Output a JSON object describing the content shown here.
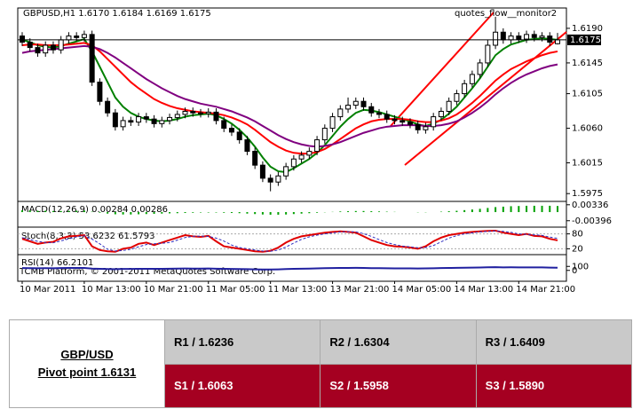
{
  "chart_data": {
    "type": "candlestick",
    "title": "GBPUSD,H1  1.6170 1.6184 1.6169 1.6175",
    "subtitle": "quotes_flow__monitor2",
    "x": [
      "10 Mar 2011",
      null,
      null,
      null,
      null,
      null,
      null,
      null,
      "10 Mar 13:00",
      null,
      null,
      null,
      null,
      null,
      null,
      null,
      "10 Mar 21:00",
      null,
      null,
      null,
      null,
      null,
      null,
      null,
      "11 Mar 05:00",
      null,
      null,
      null,
      null,
      null,
      null,
      null,
      "11 Mar 13:00",
      null,
      null,
      null,
      null,
      null,
      null,
      null,
      "13 Mar 21:00",
      null,
      null,
      null,
      null,
      null,
      null,
      null,
      "14 Mar 05:00",
      null,
      null,
      null,
      null,
      null,
      null,
      null,
      "14 Mar 13:00",
      null,
      null,
      null,
      null,
      null,
      null,
      null,
      "14 Mar 21:00",
      null,
      null,
      null,
      null,
      null
    ],
    "open": [
      1.618,
      1.6172,
      1.6165,
      1.6158,
      1.6168,
      1.6162,
      1.6175,
      1.618,
      1.6178,
      1.6182,
      1.612,
      1.6095,
      1.608,
      1.6062,
      1.607,
      1.6068,
      1.6075,
      1.6072,
      1.6066,
      1.607,
      1.6074,
      1.6078,
      1.6082,
      1.608,
      1.6079,
      1.6081,
      1.607,
      1.606,
      1.6055,
      1.6045,
      1.603,
      1.6012,
      1.5995,
      1.599,
      1.5998,
      1.601,
      1.602,
      1.6025,
      1.603,
      1.6045,
      1.606,
      1.6075,
      1.6085,
      1.609,
      1.6095,
      1.6088,
      1.608,
      1.6078,
      1.6072,
      1.607,
      1.6068,
      1.6065,
      1.6058,
      1.6062,
      1.6075,
      1.6082,
      1.6095,
      1.6105,
      1.6118,
      1.613,
      1.6145,
      1.6168,
      1.6185,
      1.6175,
      1.618,
      1.6176,
      1.6182,
      1.6178,
      1.618,
      1.617
    ],
    "high": [
      1.6185,
      1.6177,
      1.617,
      1.6173,
      1.6173,
      1.618,
      1.6185,
      1.6185,
      1.6187,
      1.6187,
      1.6125,
      1.61,
      1.6085,
      1.6075,
      1.6075,
      1.608,
      1.608,
      1.6077,
      1.6075,
      1.6079,
      1.6083,
      1.6087,
      1.6087,
      1.6085,
      1.6086,
      1.6086,
      1.6075,
      1.6065,
      1.606,
      1.605,
      1.6035,
      1.6017,
      1.6,
      1.6003,
      1.6015,
      1.6025,
      1.603,
      1.6035,
      1.605,
      1.6065,
      1.608,
      1.609,
      1.61,
      1.61,
      1.61,
      1.6093,
      1.6085,
      1.6083,
      1.6077,
      1.6075,
      1.6073,
      1.607,
      1.6067,
      1.608,
      1.6087,
      1.61,
      1.611,
      1.6123,
      1.6135,
      1.615,
      1.6175,
      1.6205,
      1.619,
      1.6185,
      1.6185,
      1.6187,
      1.6187,
      1.6185,
      1.6185,
      1.6184
    ],
    "low": [
      1.6167,
      1.616,
      1.6153,
      1.6153,
      1.6157,
      1.6157,
      1.617,
      1.6173,
      1.6173,
      1.6115,
      1.609,
      1.6075,
      1.6057,
      1.6057,
      1.6063,
      1.6063,
      1.6067,
      1.6061,
      1.6061,
      1.6065,
      1.6069,
      1.6073,
      1.6075,
      1.6074,
      1.6074,
      1.6065,
      1.6055,
      1.605,
      1.604,
      1.6025,
      1.6007,
      1.599,
      1.5978,
      1.5985,
      1.5993,
      1.6005,
      1.6015,
      1.602,
      1.6025,
      1.604,
      1.6055,
      1.607,
      1.608,
      1.6085,
      1.6083,
      1.6075,
      1.6073,
      1.6067,
      1.6065,
      1.6063,
      1.606,
      1.6053,
      1.6053,
      1.6057,
      1.607,
      1.6077,
      1.609,
      1.61,
      1.6113,
      1.6125,
      1.614,
      1.6163,
      1.617,
      1.617,
      1.6171,
      1.6171,
      1.6173,
      1.6173,
      1.6167,
      1.6169
    ],
    "close": [
      1.6172,
      1.6165,
      1.6158,
      1.6168,
      1.6162,
      1.6175,
      1.618,
      1.6178,
      1.6182,
      1.612,
      1.6095,
      1.608,
      1.6062,
      1.607,
      1.6068,
      1.6075,
      1.6072,
      1.6066,
      1.607,
      1.6074,
      1.6078,
      1.6082,
      1.608,
      1.6079,
      1.6081,
      1.607,
      1.606,
      1.6055,
      1.6045,
      1.603,
      1.6012,
      1.5995,
      1.599,
      1.5998,
      1.601,
      1.602,
      1.6025,
      1.603,
      1.6045,
      1.606,
      1.6075,
      1.6085,
      1.609,
      1.6095,
      1.6088,
      1.608,
      1.6078,
      1.6072,
      1.607,
      1.6068,
      1.6065,
      1.6058,
      1.6062,
      1.6075,
      1.6082,
      1.6095,
      1.6105,
      1.6118,
      1.613,
      1.6145,
      1.6168,
      1.6185,
      1.6175,
      1.618,
      1.6176,
      1.6182,
      1.6178,
      1.618,
      1.6172,
      1.6175
    ],
    "series": [
      {
        "color": "#008000",
        "values": [
          1.6175,
          1.6172,
          1.6168,
          1.6166,
          1.6165,
          1.6167,
          1.617,
          1.6173,
          1.6176,
          1.616,
          1.614,
          1.612,
          1.61,
          1.6088,
          1.608,
          1.6075,
          1.6072,
          1.607,
          1.6069,
          1.607,
          1.6072,
          1.6075,
          1.6077,
          1.6078,
          1.6079,
          1.6077,
          1.6072,
          1.6066,
          1.6058,
          1.6048,
          1.6036,
          1.6022,
          1.601,
          1.6004,
          1.6003,
          1.6008,
          1.6014,
          1.602,
          1.6028,
          1.6038,
          1.605,
          1.6062,
          1.6072,
          1.608,
          1.6084,
          1.6083,
          1.6081,
          1.6078,
          1.6075,
          1.6072,
          1.6069,
          1.6065,
          1.6063,
          1.6066,
          1.6071,
          1.6079,
          1.6088,
          1.61,
          1.6112,
          1.6125,
          1.614,
          1.6155,
          1.6163,
          1.6169,
          1.6172,
          1.6175,
          1.6176,
          1.6177,
          1.6176,
          1.6175
        ]
      },
      {
        "color": "#ff0000",
        "values": [
          1.6168,
          1.6169,
          1.6169,
          1.6168,
          1.6168,
          1.6168,
          1.6169,
          1.617,
          1.6171,
          1.6168,
          1.616,
          1.615,
          1.614,
          1.613,
          1.612,
          1.6112,
          1.6105,
          1.6098,
          1.6093,
          1.6089,
          1.6086,
          1.6084,
          1.6082,
          1.6081,
          1.608,
          1.6079,
          1.6077,
          1.6074,
          1.607,
          1.6065,
          1.6058,
          1.605,
          1.6042,
          1.6036,
          1.6031,
          1.6028,
          1.6027,
          1.6027,
          1.6029,
          1.6033,
          1.6039,
          1.6046,
          1.6053,
          1.606,
          1.6065,
          1.6069,
          1.6071,
          1.6072,
          1.6072,
          1.6072,
          1.6071,
          1.6069,
          1.6068,
          1.6068,
          1.607,
          1.6073,
          1.6078,
          1.6085,
          1.6093,
          1.6102,
          1.6112,
          1.6122,
          1.613,
          1.6137,
          1.6142,
          1.6147,
          1.6151,
          1.6155,
          1.6158,
          1.616
        ]
      },
      {
        "color": "#800080",
        "values": [
          1.6158,
          1.616,
          1.6161,
          1.6162,
          1.6163,
          1.6164,
          1.6165,
          1.6166,
          1.6167,
          1.6166,
          1.6163,
          1.6158,
          1.6152,
          1.6145,
          1.6138,
          1.6131,
          1.6124,
          1.6118,
          1.6112,
          1.6107,
          1.6102,
          1.6098,
          1.6095,
          1.6092,
          1.609,
          1.6088,
          1.6085,
          1.6082,
          1.6078,
          1.6074,
          1.6069,
          1.6063,
          1.6057,
          1.6051,
          1.6046,
          1.6042,
          1.6039,
          1.6037,
          1.6036,
          1.6037,
          1.6039,
          1.6042,
          1.6046,
          1.605,
          1.6054,
          1.6057,
          1.606,
          1.6062,
          1.6063,
          1.6064,
          1.6064,
          1.6064,
          1.6063,
          1.6063,
          1.6064,
          1.6066,
          1.6069,
          1.6074,
          1.608,
          1.6087,
          1.6095,
          1.6104,
          1.6112,
          1.6119,
          1.6125,
          1.613,
          1.6134,
          1.6138,
          1.6141,
          1.6143
        ]
      }
    ],
    "ylim": [
      1.5966,
      1.6213
    ],
    "yticks": [
      {
        "value": 1.619,
        "label": "1.6190"
      },
      1.6145,
      1.6105,
      {
        "value": 1.606,
        "label": "1.6060"
      },
      1.6015,
      1.5975
    ],
    "last_price": 1.6175,
    "macd": {
      "label": "MACD(12,26,9) 0.00284 0.00286",
      "color": "#00a000",
      "values": [
        0.0008,
        0.0007,
        0.0006,
        0.0006,
        0.0005,
        0.0005,
        0.0006,
        0.0006,
        0.0007,
        0.0002,
        -0.0003,
        -0.0007,
        -0.001,
        -0.0011,
        -0.0011,
        -0.001,
        -0.0009,
        -0.0008,
        -0.0007,
        -0.0006,
        -0.0005,
        -0.0004,
        -0.0003,
        -0.0002,
        -0.0002,
        -0.0002,
        -0.0003,
        -0.0004,
        -0.0005,
        -0.0007,
        -0.0009,
        -0.0011,
        -0.0012,
        -0.0012,
        -0.0011,
        -0.0009,
        -0.0007,
        -0.0005,
        -0.0003,
        -0.0001,
        0.0001,
        0.0003,
        0.0004,
        0.0005,
        0.0005,
        0.0004,
        0.0003,
        0.0002,
        0.0001,
        0,
        0,
        -0.0001,
        -0.0001,
        0,
        0.0002,
        0.0004,
        0.0006,
        0.0009,
        0.0012,
        0.0015,
        0.0019,
        0.0023,
        0.0025,
        0.0027,
        0.0028,
        0.0029,
        0.0029,
        0.0029,
        0.0029,
        0.0028
      ],
      "ylim": [
        -0.0065,
        0.0045
      ],
      "yticks": [
        0.00336,
        -0.00396
      ]
    },
    "stochastic": {
      "label": "Stoch(8,3,3) 53.6232 61.5793",
      "series": [
        {
          "color": "#e00000",
          "dashed": false,
          "values": [
            60,
            50,
            40,
            45,
            48,
            62,
            70,
            72,
            75,
            30,
            15,
            10,
            8,
            20,
            25,
            40,
            45,
            35,
            45,
            55,
            65,
            75,
            70,
            68,
            72,
            50,
            30,
            25,
            20,
            15,
            10,
            8,
            12,
            25,
            45,
            60,
            70,
            75,
            80,
            85,
            88,
            90,
            88,
            85,
            70,
            55,
            45,
            35,
            30,
            28,
            25,
            20,
            30,
            50,
            65,
            75,
            80,
            85,
            88,
            90,
            92,
            93,
            85,
            80,
            75,
            80,
            72,
            70,
            60,
            54
          ]
        },
        {
          "color": "#3030c0",
          "dashed": true,
          "values": [
            65,
            57,
            50,
            45,
            44,
            52,
            60,
            68,
            72,
            59,
            40,
            18,
            11,
            13,
            18,
            28,
            37,
            40,
            42,
            45,
            55,
            65,
            70,
            71,
            70,
            63,
            51,
            35,
            25,
            20,
            15,
            11,
            10,
            15,
            27,
            43,
            58,
            68,
            75,
            80,
            84,
            88,
            89,
            88,
            81,
            70,
            57,
            45,
            37,
            31,
            28,
            24,
            25,
            33,
            48,
            63,
            73,
            80,
            84,
            88,
            90,
            92,
            90,
            86,
            80,
            78,
            76,
            74,
            67,
            62
          ]
        }
      ],
      "ylim": [
        0,
        100
      ],
      "yticks": [
        80,
        20
      ]
    },
    "rsi": {
      "label": "RSI(14) 66.2101",
      "color": "#2020a0",
      "values": [
        58,
        55,
        52,
        55,
        54,
        58,
        60,
        60,
        61,
        45,
        38,
        34,
        30,
        35,
        36,
        40,
        40,
        38,
        40,
        42,
        44,
        46,
        45,
        45,
        46,
        42,
        38,
        36,
        33,
        30,
        26,
        23,
        22,
        26,
        32,
        38,
        42,
        45,
        50,
        55,
        58,
        61,
        62,
        63,
        60,
        56,
        55,
        52,
        51,
        50,
        49,
        47,
        49,
        54,
        57,
        61,
        64,
        67,
        70,
        73,
        77,
        80,
        76,
        77,
        75,
        76,
        74,
        75,
        70,
        66
      ],
      "ylim": [
        -250,
        350
      ],
      "yticks": [
        100,
        0
      ]
    },
    "watermark": "TCMB Platform, © 2001-2011 MetaQuotes Software Corp."
  },
  "table": {
    "pair": "GBP/USD",
    "pivot": "Pivot point 1.6131",
    "resistance": [
      "R1 / 1.6236",
      "R2 / 1.6304",
      "R3 / 1.6409"
    ],
    "support": [
      "S1 / 1.6063",
      "S2 / 1.5958",
      "S3 / 1.5890"
    ]
  }
}
